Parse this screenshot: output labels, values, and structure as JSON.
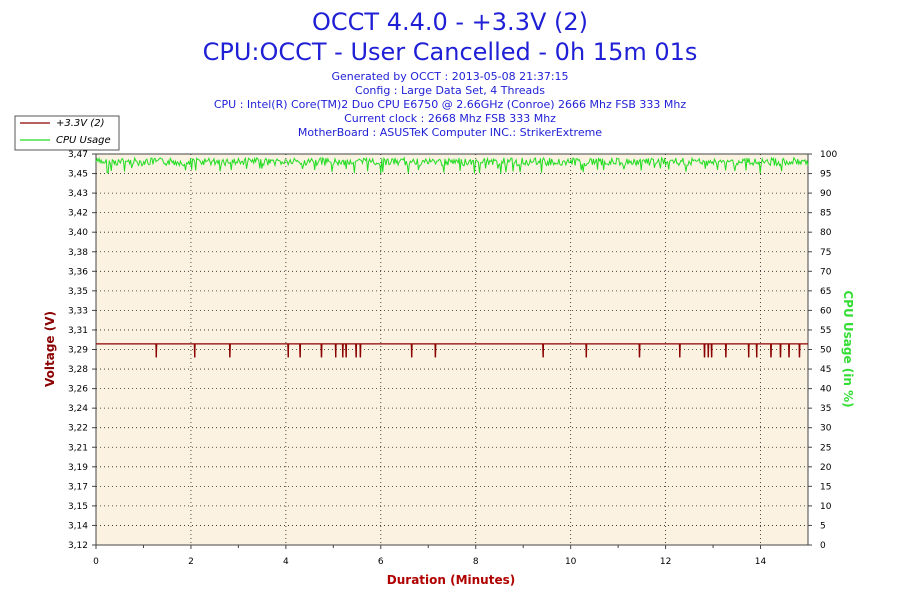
{
  "chart_data": {
    "type": "line",
    "title": "OCCT 4.4.0 - +3.3V (2)",
    "subtitle": "CPU:OCCT - User Cancelled - 0h 15m 01s",
    "info_lines": [
      "Generated by OCCT : 2013-05-08 21:37:15",
      "Config : Large Data Set, 4 Threads",
      "CPU : Intel(R) Core(TM)2 Duo CPU E6750 @ 2.66GHz (Conroe) 2666 Mhz FSB 333 Mhz",
      "Current clock : 2668 Mhz FSB 333 Mhz",
      "MotherBoard : ASUSTeK Computer INC.: StrikerExtreme"
    ],
    "xlabel": "Duration (Minutes)",
    "ylabel_left": "Voltage (V)",
    "ylabel_right": "CPU Usage (in %)",
    "xlim": [
      0,
      15
    ],
    "ylim_left": [
      3.12,
      3.47
    ],
    "ylim_right": [
      0,
      100
    ],
    "x_ticks": [
      "0",
      "2",
      "4",
      "6",
      "8",
      "10",
      "12",
      "14"
    ],
    "y_left_ticks": [
      "3,12",
      "3,14",
      "3,15",
      "3,17",
      "3,19",
      "3,21",
      "3,22",
      "3,24",
      "3,26",
      "3,28",
      "3,29",
      "3,31",
      "3,33",
      "3,35",
      "3,36",
      "3,38",
      "3,40",
      "3,42",
      "3,43",
      "3,45",
      "3,47"
    ],
    "y_right_ticks": [
      "0",
      "5",
      "10",
      "15",
      "20",
      "25",
      "30",
      "35",
      "40",
      "45",
      "50",
      "55",
      "60",
      "65",
      "70",
      "75",
      "80",
      "85",
      "90",
      "95",
      "100"
    ],
    "legend_position": "top-left",
    "grid": true,
    "series": [
      {
        "name": "+3.3V (2)",
        "axis": "left",
        "color": "#8b0000",
        "baseline": 3.3,
        "dips": [
          {
            "x": 1.27,
            "y": 3.288
          },
          {
            "x": 2.08,
            "y": 3.288
          },
          {
            "x": 2.82,
            "y": 3.288
          },
          {
            "x": 4.05,
            "y": 3.288
          },
          {
            "x": 4.3,
            "y": 3.288
          },
          {
            "x": 4.75,
            "y": 3.288
          },
          {
            "x": 5.05,
            "y": 3.288
          },
          {
            "x": 5.2,
            "y": 3.288
          },
          {
            "x": 5.27,
            "y": 3.288
          },
          {
            "x": 5.48,
            "y": 3.288
          },
          {
            "x": 5.57,
            "y": 3.288
          },
          {
            "x": 6.65,
            "y": 3.288
          },
          {
            "x": 7.15,
            "y": 3.288
          },
          {
            "x": 9.42,
            "y": 3.288
          },
          {
            "x": 10.33,
            "y": 3.288
          },
          {
            "x": 11.45,
            "y": 3.288
          },
          {
            "x": 12.3,
            "y": 3.288
          },
          {
            "x": 12.82,
            "y": 3.288
          },
          {
            "x": 12.9,
            "y": 3.288
          },
          {
            "x": 12.97,
            "y": 3.288
          },
          {
            "x": 13.27,
            "y": 3.288
          },
          {
            "x": 13.75,
            "y": 3.288
          },
          {
            "x": 13.92,
            "y": 3.288
          },
          {
            "x": 14.22,
            "y": 3.288
          },
          {
            "x": 14.42,
            "y": 3.288
          },
          {
            "x": 14.6,
            "y": 3.288
          },
          {
            "x": 14.82,
            "y": 3.288
          }
        ]
      },
      {
        "name": "CPU Usage",
        "axis": "right",
        "color": "#22dd22",
        "baseline": 99,
        "typical_min": 97,
        "occasional_min": 95
      }
    ]
  }
}
